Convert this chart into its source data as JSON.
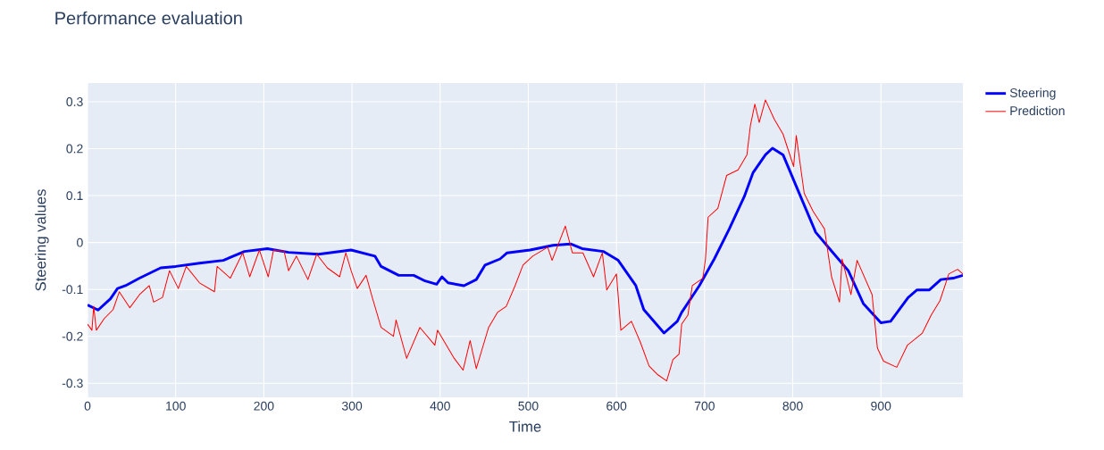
{
  "chart_data": {
    "type": "line",
    "title": "Performance evaluation",
    "xlabel": "Time",
    "ylabel": "Steering values",
    "xlim": [
      0,
      993
    ],
    "ylim": [
      -0.33,
      0.34
    ],
    "xticks": [
      0,
      100,
      200,
      300,
      400,
      500,
      600,
      700,
      800,
      900
    ],
    "yticks": [
      -0.3,
      -0.2,
      -0.1,
      0,
      0.1,
      0.2,
      0.3
    ],
    "grid": true,
    "legend": "top right",
    "line_style": "solid",
    "marker": "none",
    "series": [
      {
        "name": "Steering",
        "color": "#0000ff",
        "x": [
          0,
          12,
          26,
          34,
          43,
          59,
          83,
          100,
          127,
          154,
          178,
          204,
          228,
          262,
          299,
          326,
          333,
          353,
          370,
          383,
          396,
          402,
          409,
          427,
          441,
          451,
          468,
          476,
          502,
          528,
          548,
          561,
          585,
          602,
          622,
          631,
          654,
          669,
          674,
          694,
          711,
          728,
          745,
          755,
          769,
          777,
          789,
          806,
          826,
          843,
          863,
          880,
          900,
          911,
          931,
          941,
          955,
          968,
          982,
          993
        ],
        "values": [
          -0.133,
          -0.144,
          -0.12,
          -0.098,
          -0.092,
          -0.076,
          -0.054,
          -0.051,
          -0.044,
          -0.038,
          -0.019,
          -0.013,
          -0.021,
          -0.025,
          -0.016,
          -0.029,
          -0.051,
          -0.07,
          -0.07,
          -0.082,
          -0.089,
          -0.073,
          -0.086,
          -0.092,
          -0.079,
          -0.048,
          -0.035,
          -0.022,
          -0.016,
          -0.006,
          -0.003,
          -0.013,
          -0.019,
          -0.038,
          -0.092,
          -0.143,
          -0.193,
          -0.168,
          -0.149,
          -0.092,
          -0.035,
          0.029,
          0.098,
          0.149,
          0.187,
          0.201,
          0.187,
          0.111,
          0.022,
          -0.016,
          -0.06,
          -0.13,
          -0.171,
          -0.168,
          -0.117,
          -0.101,
          -0.101,
          -0.079,
          -0.076,
          -0.07
        ]
      },
      {
        "name": "Prediction",
        "color": "#ff0000",
        "x": [
          0,
          5,
          7,
          10,
          19,
          29,
          36,
          48,
          59,
          70,
          75,
          85,
          93,
          103,
          112,
          127,
          144,
          147,
          162,
          176,
          184,
          195,
          205,
          211,
          223,
          228,
          237,
          250,
          260,
          272,
          286,
          293,
          299,
          306,
          316,
          323,
          326,
          333,
          347,
          350,
          362,
          377,
          394,
          397,
          416,
          426,
          434,
          441,
          455,
          465,
          475,
          485,
          494,
          505,
          522,
          527,
          542,
          550,
          562,
          574,
          584,
          589,
          600,
          605,
          617,
          627,
          637,
          647,
          657,
          664,
          671,
          674,
          681,
          686,
          698,
          701,
          704,
          715,
          725,
          738,
          748,
          752,
          757,
          762,
          769,
          779,
          789,
          801,
          804,
          813,
          823,
          836,
          844,
          853,
          856,
          866,
          873,
          890,
          896,
          903,
          918,
          930,
          947,
          957,
          967,
          977,
          987,
          993
        ],
        "values": [
          -0.174,
          -0.187,
          -0.136,
          -0.187,
          -0.162,
          -0.143,
          -0.105,
          -0.139,
          -0.111,
          -0.092,
          -0.127,
          -0.117,
          -0.06,
          -0.098,
          -0.051,
          -0.086,
          -0.105,
          -0.051,
          -0.076,
          -0.022,
          -0.073,
          -0.016,
          -0.073,
          -0.016,
          -0.019,
          -0.06,
          -0.029,
          -0.079,
          -0.025,
          -0.054,
          -0.073,
          -0.022,
          -0.06,
          -0.098,
          -0.07,
          -0.117,
          -0.136,
          -0.181,
          -0.2,
          -0.165,
          -0.247,
          -0.181,
          -0.219,
          -0.187,
          -0.247,
          -0.272,
          -0.209,
          -0.269,
          -0.181,
          -0.149,
          -0.136,
          -0.092,
          -0.048,
          -0.029,
          -0.01,
          -0.038,
          0.035,
          -0.022,
          -0.022,
          -0.073,
          -0.022,
          -0.101,
          -0.067,
          -0.187,
          -0.168,
          -0.212,
          -0.263,
          -0.282,
          -0.295,
          -0.25,
          -0.238,
          -0.174,
          -0.155,
          -0.092,
          -0.076,
          -0.035,
          0.054,
          0.073,
          0.143,
          0.155,
          0.187,
          0.25,
          0.295,
          0.256,
          0.304,
          0.263,
          0.231,
          0.162,
          0.228,
          0.105,
          0.067,
          0.029,
          -0.073,
          -0.127,
          -0.035,
          -0.111,
          -0.038,
          -0.111,
          -0.225,
          -0.253,
          -0.266,
          -0.219,
          -0.193,
          -0.155,
          -0.124,
          -0.067,
          -0.057,
          -0.067
        ]
      }
    ]
  }
}
